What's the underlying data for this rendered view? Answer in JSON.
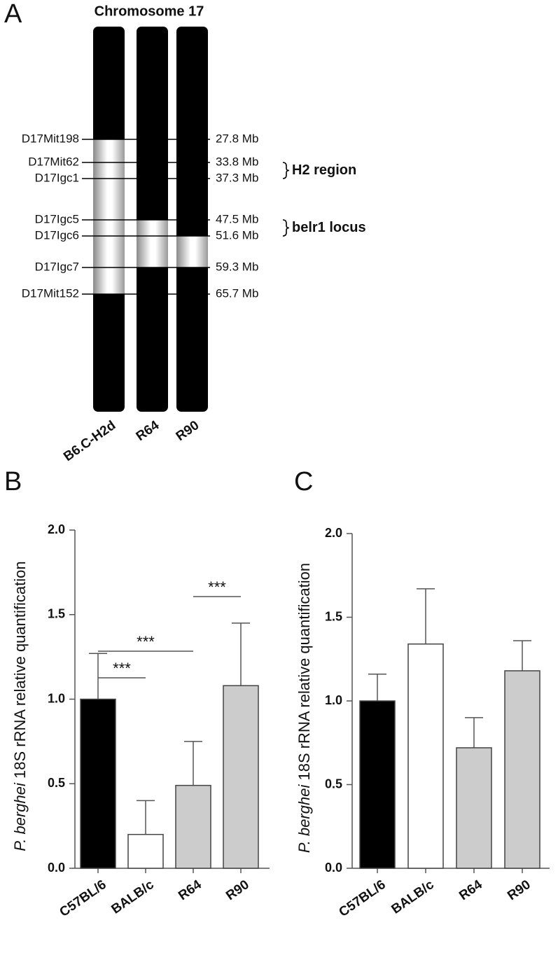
{
  "diagram": {
    "panel_label": "A",
    "title": "Chromosome 17",
    "strains": [
      "B6.C-H2d",
      "R64",
      "R90"
    ],
    "markers": [
      {
        "name": "D17Mit198",
        "position": "27.8 Mb"
      },
      {
        "name": "D17Mit62",
        "position": "33.8 Mb"
      },
      {
        "name": "D17Igc1",
        "position": "37.3 Mb"
      },
      {
        "name": "D17Igc5",
        "position": "47.5 Mb"
      },
      {
        "name": "D17Igc6",
        "position": "51.6 Mb"
      },
      {
        "name": "D17Igc7",
        "position": "59.3 Mb"
      },
      {
        "name": "D17Mit152",
        "position": "65.7 Mb"
      }
    ],
    "regions": [
      "H2 region",
      "belr1 locus"
    ]
  },
  "chart_data": [
    {
      "type": "bar",
      "panel_label": "B",
      "ylabel": [
        "P. berghei",
        "18S rRNA relative quantification"
      ],
      "categories": [
        "C57BL/6",
        "BALB/c",
        "R64",
        "R90"
      ],
      "values": [
        1.0,
        0.2,
        0.49,
        1.08
      ],
      "errors": [
        0.27,
        0.2,
        0.26,
        0.37
      ],
      "colors": [
        "#000000",
        "#ffffff",
        "#cccccc",
        "#cccccc"
      ],
      "ylim": [
        0,
        2
      ],
      "yticks": [
        {
          "value": 0,
          "label": "0.0"
        },
        {
          "value": 0.5,
          "label": "0.5"
        },
        {
          "value": 1,
          "label": "1.0"
        },
        {
          "value": 1.5,
          "label": "1.5"
        },
        {
          "value": 2,
          "label": "2.0"
        }
      ],
      "annotations": [
        {
          "text": "***",
          "between": [
            0,
            1
          ]
        },
        {
          "text": "***",
          "between": [
            0,
            2
          ]
        },
        {
          "text": "***",
          "between": [
            2,
            3
          ]
        }
      ]
    },
    {
      "type": "bar",
      "panel_label": "C",
      "ylabel": [
        "P. berghei",
        "18S rRNA relative quantification"
      ],
      "categories": [
        "C57BL/6",
        "BALB/c",
        "R64",
        "R90"
      ],
      "values": [
        1.0,
        1.34,
        0.72,
        1.18
      ],
      "errors": [
        0.16,
        0.33,
        0.18,
        0.18
      ],
      "colors": [
        "#000000",
        "#ffffff",
        "#cccccc",
        "#cccccc"
      ],
      "ylim": [
        0,
        2
      ],
      "yticks": [
        {
          "value": 0,
          "label": "0.0"
        },
        {
          "value": 0.5,
          "label": "0.5"
        },
        {
          "value": 1,
          "label": "1.0"
        },
        {
          "value": 1.5,
          "label": "1.5"
        },
        {
          "value": 2,
          "label": "2.0"
        }
      ]
    }
  ]
}
